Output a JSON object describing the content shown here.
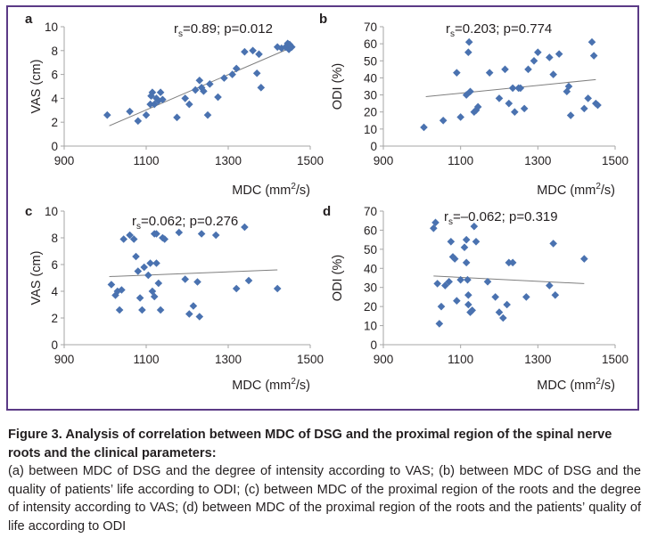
{
  "chart_data": [
    {
      "type": "scatter",
      "panel_letter": "a",
      "annotation_prefix": "r",
      "annotation_sub": "s",
      "annotation_rest": "=0.89; p=0.012",
      "xlabel": "MDC (mm²/s)",
      "ylabel": "VAS (cm)",
      "xlim": [
        900,
        1500
      ],
      "ylim": [
        0,
        10
      ],
      "x_ticks": [
        "900",
        "1100",
        "1300",
        "1500"
      ],
      "y_ticks": [
        "0",
        "2",
        "4",
        "6",
        "8",
        "10"
      ],
      "trendline": [
        [
          1010,
          1.7
        ],
        [
          1450,
          8.2
        ]
      ],
      "x": [
        1005,
        1060,
        1080,
        1100,
        1110,
        1112,
        1115,
        1120,
        1125,
        1130,
        1135,
        1140,
        1175,
        1195,
        1205,
        1220,
        1230,
        1235,
        1240,
        1250,
        1255,
        1275,
        1290,
        1310,
        1320,
        1340,
        1360,
        1370,
        1375,
        1380,
        1420,
        1430,
        1440,
        1445,
        1448,
        1450,
        1455
      ],
      "y": [
        2.6,
        2.9,
        2.1,
        2.6,
        3.5,
        4.2,
        4.5,
        3.5,
        4.0,
        3.8,
        4.5,
        3.9,
        2.4,
        4.0,
        3.5,
        4.7,
        5.5,
        4.9,
        4.6,
        2.6,
        5.2,
        4.1,
        5.7,
        6.0,
        6.5,
        7.9,
        8.0,
        6.1,
        7.7,
        4.9,
        8.3,
        8.2,
        8.3,
        8.6,
        8.1,
        8.5,
        8.3
      ]
    },
    {
      "type": "scatter",
      "panel_letter": "b",
      "annotation_prefix": "r",
      "annotation_sub": "s",
      "annotation_rest": "=0.203; p=0.774",
      "xlabel": "MDC (mm²/s)",
      "ylabel": "ODI (%)",
      "xlim": [
        900,
        1500
      ],
      "ylim": [
        0,
        70
      ],
      "x_ticks": [
        "900",
        "1100",
        "1300",
        "1500"
      ],
      "y_ticks": [
        "0",
        "10",
        "20",
        "30",
        "40",
        "50",
        "60",
        "70"
      ],
      "trendline": [
        [
          1010,
          29
        ],
        [
          1450,
          39
        ]
      ],
      "x": [
        1005,
        1055,
        1090,
        1100,
        1115,
        1120,
        1122,
        1125,
        1135,
        1140,
        1145,
        1175,
        1200,
        1215,
        1225,
        1235,
        1240,
        1250,
        1255,
        1265,
        1275,
        1290,
        1300,
        1330,
        1340,
        1355,
        1375,
        1380,
        1385,
        1420,
        1430,
        1440,
        1445,
        1450,
        1455
      ],
      "y": [
        11,
        15,
        43,
        17,
        30,
        55,
        61,
        32,
        20,
        21,
        23,
        43,
        28,
        45,
        25,
        34,
        20,
        34,
        34,
        22,
        45,
        50,
        55,
        52,
        42,
        54,
        32,
        35,
        18,
        22,
        28,
        61,
        53,
        25,
        24
      ]
    },
    {
      "type": "scatter",
      "panel_letter": "c",
      "annotation_prefix": "r",
      "annotation_sub": "s",
      "annotation_rest": "=0.062; p=0.276",
      "xlabel": "MDC (mm²/s)",
      "ylabel": "VAS (cm)",
      "xlim": [
        900,
        1500
      ],
      "ylim": [
        0,
        10
      ],
      "x_ticks": [
        "900",
        "1100",
        "1300",
        "1500"
      ],
      "y_ticks": [
        "0",
        "2",
        "4",
        "6",
        "8",
        "10"
      ],
      "trendline": [
        [
          1010,
          5.1
        ],
        [
          1420,
          5.6
        ]
      ],
      "x": [
        1015,
        1025,
        1030,
        1035,
        1040,
        1045,
        1060,
        1070,
        1075,
        1080,
        1085,
        1090,
        1095,
        1105,
        1110,
        1115,
        1120,
        1120,
        1125,
        1125,
        1130,
        1135,
        1140,
        1145,
        1180,
        1195,
        1205,
        1215,
        1225,
        1230,
        1235,
        1270,
        1320,
        1340,
        1350,
        1420
      ],
      "y": [
        4.5,
        3.7,
        4.0,
        2.6,
        4.1,
        7.9,
        8.2,
        7.9,
        6.6,
        5.5,
        3.5,
        2.6,
        5.8,
        5.2,
        6.1,
        4.0,
        3.6,
        8.3,
        6.1,
        8.3,
        4.6,
        2.6,
        8.0,
        7.9,
        8.4,
        4.9,
        2.3,
        2.9,
        4.7,
        2.1,
        8.3,
        8.2,
        4.2,
        8.8,
        4.8,
        4.2
      ]
    },
    {
      "type": "scatter",
      "panel_letter": "d",
      "annotation_prefix": "r",
      "annotation_sub": "s",
      "annotation_rest": "=–0.062; p=0.319",
      "xlabel": "MDC (mm²/s)",
      "ylabel": "ODI (%)",
      "xlim": [
        900,
        1500
      ],
      "ylim": [
        0,
        70
      ],
      "x_ticks": [
        "900",
        "1100",
        "1300",
        "1500"
      ],
      "y_ticks": [
        "0",
        "10",
        "20",
        "30",
        "40",
        "50",
        "60",
        "70"
      ],
      "trendline": [
        [
          1030,
          36
        ],
        [
          1420,
          32
        ]
      ],
      "x": [
        1030,
        1035,
        1040,
        1045,
        1050,
        1060,
        1070,
        1075,
        1080,
        1085,
        1090,
        1100,
        1110,
        1115,
        1115,
        1118,
        1120,
        1120,
        1125,
        1130,
        1135,
        1140,
        1170,
        1190,
        1200,
        1210,
        1220,
        1225,
        1235,
        1270,
        1330,
        1340,
        1345,
        1420
      ],
      "y": [
        61,
        64,
        32,
        11,
        20,
        31,
        33,
        54,
        46,
        45,
        23,
        34,
        51,
        55,
        43,
        34,
        26,
        21,
        17,
        18,
        62,
        54,
        33,
        25,
        17,
        14,
        21,
        43,
        43,
        25,
        31,
        53,
        26,
        45
      ]
    }
  ],
  "caption": {
    "title": "Figure 3. Analysis of correlation between MDC of DSG and the proximal region of the spinal nerve roots and the clinical parameters:",
    "body": "(a) between MDC of DSG and the degree of intensity according to VAS; (b) between MDC of DSG and the quality of patients’ life according to ODI; (c) between MDC of the proximal region of the roots and the degree of intensity according to VAS; (d) between MDC of the proximal region of the roots and the patients’ quality of life according to ODI"
  },
  "colors": {
    "marker": "#4a72b0",
    "axis": "#a6a6a6",
    "trendline": "#7f7f7f",
    "frame": "#5b3a86",
    "text": "#231f20"
  }
}
